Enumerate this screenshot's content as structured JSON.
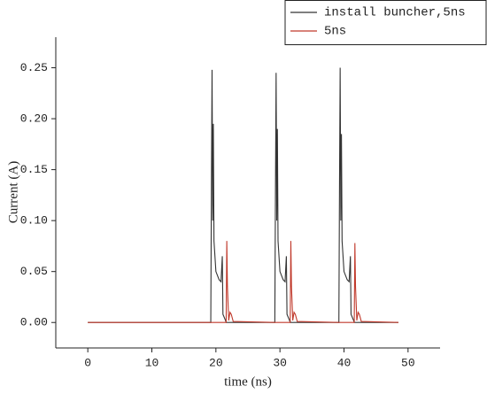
{
  "chart_data": {
    "type": "line",
    "xlabel": "time (ns)",
    "ylabel": "Current (A)",
    "x": [
      0,
      19.2,
      19.3,
      19.4,
      19.5,
      19.6,
      19.7,
      20,
      20.5,
      20.8,
      21,
      21.1,
      21.5,
      21.6,
      21.7,
      21.8,
      22,
      22.2,
      22.4,
      22.7,
      29.2,
      29.3,
      29.4,
      29.5,
      29.6,
      29.7,
      30,
      30.5,
      30.8,
      31,
      31.1,
      31.5,
      31.6,
      31.7,
      31.8,
      32,
      32.2,
      32.4,
      32.7,
      39.2,
      39.3,
      39.4,
      39.5,
      39.6,
      39.7,
      40,
      40.5,
      40.8,
      41,
      41.1,
      41.5,
      41.6,
      41.7,
      41.8,
      42,
      42.2,
      42.4,
      42.7,
      48.5
    ],
    "series": [
      {
        "name": "install buncher,5ns",
        "color": "#333333",
        "values": [
          0,
          0,
          0.135,
          0.248,
          0.1,
          0.195,
          0.08,
          0.05,
          0.042,
          0.04,
          0.065,
          0.008,
          0.002,
          0,
          0,
          0,
          0,
          0,
          0,
          0,
          0,
          0.13,
          0.245,
          0.1,
          0.19,
          0.08,
          0.05,
          0.042,
          0.04,
          0.065,
          0.008,
          0.002,
          0,
          0,
          0,
          0,
          0,
          0,
          0,
          0,
          0.135,
          0.25,
          0.1,
          0.185,
          0.08,
          0.05,
          0.042,
          0.04,
          0.065,
          0.008,
          0.002,
          0,
          0,
          0,
          0,
          0,
          0,
          0,
          0
        ]
      },
      {
        "name": "5ns",
        "color": "#c0392b",
        "values": [
          0,
          0,
          0,
          0,
          0,
          0,
          0,
          0,
          0,
          0,
          0,
          0,
          0,
          0,
          0.08,
          0.035,
          0.002,
          0.01,
          0.008,
          0.001,
          0,
          0,
          0,
          0,
          0,
          0,
          0,
          0,
          0,
          0,
          0,
          0,
          0,
          0.08,
          0.035,
          0.002,
          0.01,
          0.008,
          0.001,
          0,
          0,
          0,
          0,
          0,
          0,
          0,
          0,
          0,
          0,
          0,
          0,
          0,
          0.078,
          0.035,
          0.002,
          0.01,
          0.008,
          0.001,
          0
        ]
      }
    ],
    "xlim": [
      -5,
      55
    ],
    "xticks": [
      0,
      10,
      20,
      30,
      40,
      50
    ],
    "ylim": [
      -0.025,
      0.28
    ],
    "yticks": [
      {
        "value": 0,
        "label": "0.00"
      },
      {
        "value": 0.05,
        "label": "0.05"
      },
      {
        "value": 0.1,
        "label": "0.10"
      },
      {
        "value": 0.15,
        "label": "0.15"
      },
      {
        "value": 0.2,
        "label": "0.20"
      },
      {
        "value": 0.25,
        "label": "0.25"
      }
    ],
    "legend": "top-right"
  }
}
